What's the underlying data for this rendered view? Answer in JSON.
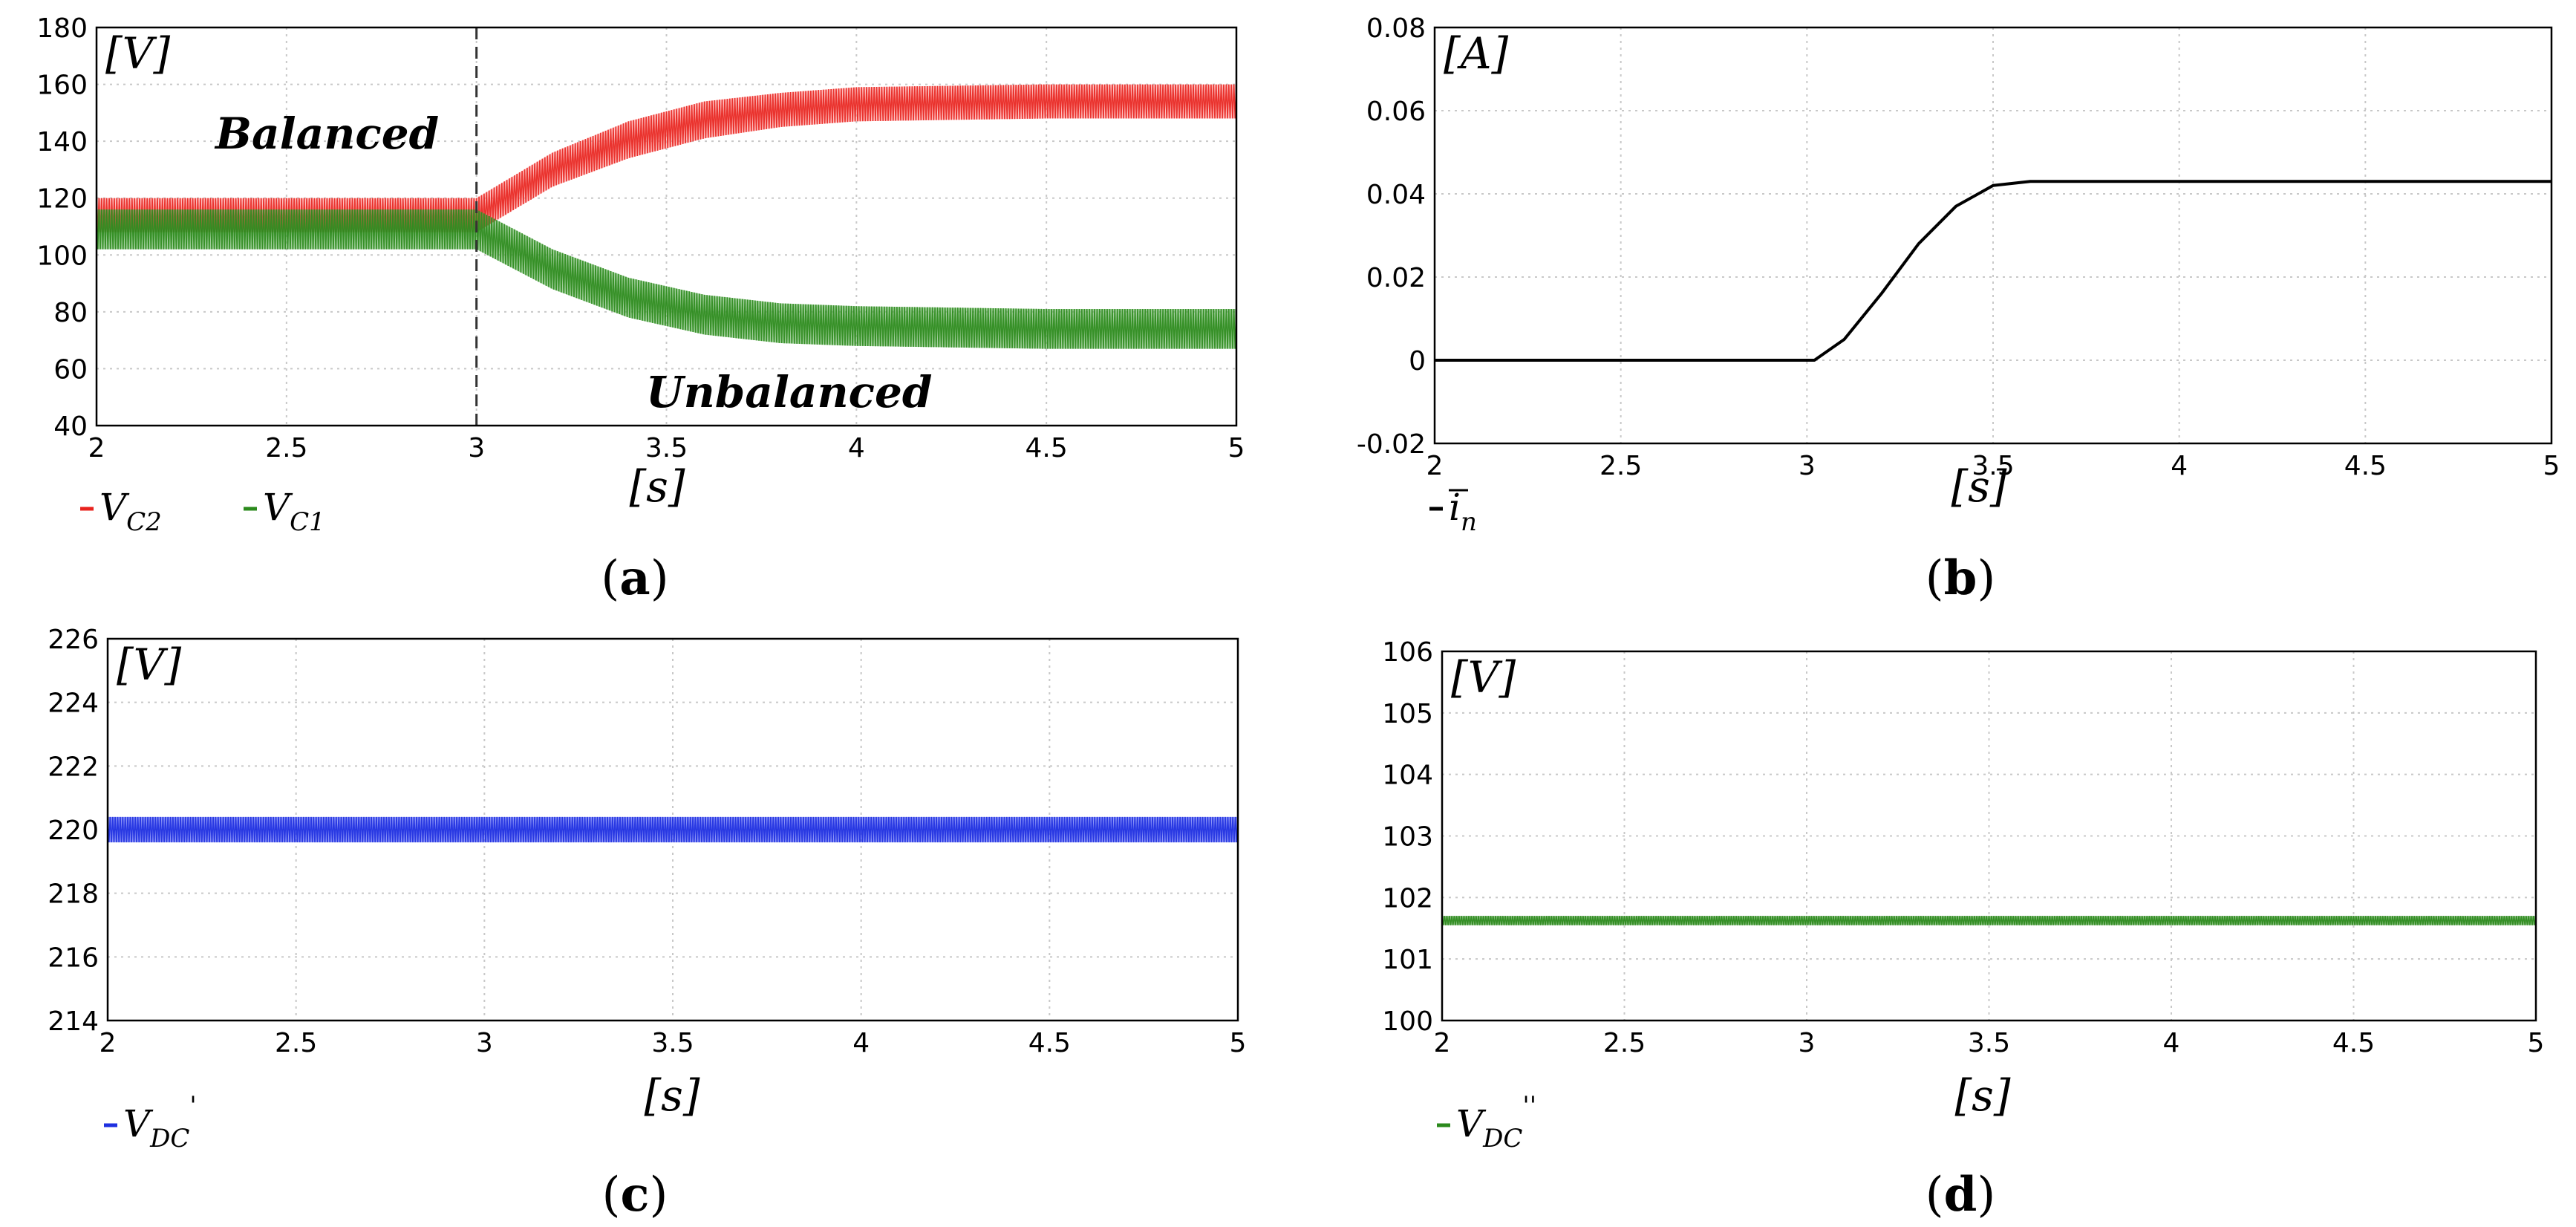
{
  "chart_data": [
    {
      "id": "a",
      "type": "line",
      "caption": "a",
      "ylabel": "[V]",
      "xlabel": "[s]",
      "xlim": [
        2,
        5
      ],
      "ylim": [
        40,
        180
      ],
      "xticks": [
        "2",
        "2.5",
        "3",
        "3.5",
        "4",
        "4.5",
        "5"
      ],
      "yticks": [
        "40",
        "60",
        "80",
        "100",
        "120",
        "140",
        "160",
        "180"
      ],
      "grid": true,
      "event_x": 3,
      "annotations": {
        "before": "Balanced",
        "after": "Unbalanced"
      },
      "series": [
        {
          "name": "VC2",
          "label_main": "V",
          "label_sub": "C2",
          "color": "#e8231e",
          "band_color": "#ff8f8f",
          "x": [
            2,
            3,
            3.2,
            3.4,
            3.6,
            3.8,
            4,
            4.5,
            5
          ],
          "low": [
            108,
            108,
            124,
            134,
            141,
            145,
            147,
            148,
            148
          ],
          "high": [
            120,
            120,
            136,
            147,
            154,
            157,
            159,
            160,
            160
          ]
        },
        {
          "name": "VC1",
          "label_main": "V",
          "label_sub": "C1",
          "color": "#2b8a1c",
          "band_color": "#55a84a",
          "x": [
            2,
            3,
            3.2,
            3.4,
            3.6,
            3.8,
            4,
            4.5,
            5
          ],
          "low": [
            102,
            102,
            88,
            78,
            72,
            69,
            68,
            67,
            67
          ],
          "high": [
            116,
            116,
            102,
            92,
            86,
            83,
            82,
            81,
            81
          ]
        }
      ]
    },
    {
      "id": "b",
      "type": "line",
      "caption": "b",
      "ylabel": "[A]",
      "xlabel": "[s]",
      "xlim": [
        2,
        5
      ],
      "ylim": [
        -0.02,
        0.08
      ],
      "xticks": [
        "2",
        "2.5",
        "3",
        "3.5",
        "4",
        "4.5",
        "5"
      ],
      "yticks": [
        "-0.02",
        "0",
        "0.02",
        "0.04",
        "0.06",
        "0.08"
      ],
      "grid": true,
      "series": [
        {
          "name": "in",
          "label_main": "i",
          "label_sub": "n",
          "color": "#000000",
          "x": [
            2,
            3,
            3.02,
            3.1,
            3.2,
            3.3,
            3.4,
            3.5,
            3.6,
            3.7,
            4,
            5
          ],
          "values": [
            0,
            0,
            0,
            0.005,
            0.016,
            0.028,
            0.037,
            0.042,
            0.043,
            0.043,
            0.043,
            0.043
          ]
        }
      ]
    },
    {
      "id": "c",
      "type": "line",
      "caption": "c",
      "ylabel": "[V]",
      "xlabel": "[s]",
      "xlim": [
        2,
        5
      ],
      "ylim": [
        214,
        226
      ],
      "xticks": [
        "2",
        "2.5",
        "3",
        "3.5",
        "4",
        "4.5",
        "5"
      ],
      "yticks": [
        "214",
        "216",
        "218",
        "220",
        "222",
        "224",
        "226"
      ],
      "grid": true,
      "series": [
        {
          "name": "VDC'",
          "label_main": "V",
          "label_sub": "DC",
          "label_sup": "'",
          "color": "#1e2fe0",
          "band_color": "#2b3cf0",
          "x": [
            2,
            5
          ],
          "low": [
            219.6,
            219.6
          ],
          "high": [
            220.4,
            220.4
          ]
        }
      ]
    },
    {
      "id": "d",
      "type": "line",
      "caption": "d",
      "ylabel": "[V]",
      "xlabel": "[s]",
      "xlim": [
        2,
        5
      ],
      "ylim": [
        100,
        106
      ],
      "xticks": [
        "2",
        "2.5",
        "3",
        "3.5",
        "4",
        "4.5",
        "5"
      ],
      "yticks": [
        "100",
        "101",
        "102",
        "103",
        "104",
        "105",
        "106"
      ],
      "grid": true,
      "series": [
        {
          "name": "VDC''",
          "label_main": "V",
          "label_sub": "DC",
          "label_sup": "''",
          "color": "#2b8a1c",
          "band_color": "#2b8a1c",
          "x": [
            2,
            5
          ],
          "low": [
            101.55,
            101.55
          ],
          "high": [
            101.7,
            101.7
          ]
        }
      ]
    }
  ]
}
